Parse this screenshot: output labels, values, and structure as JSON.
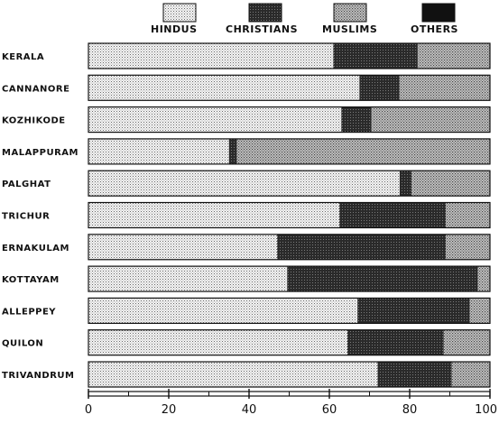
{
  "chart_data": {
    "type": "bar",
    "orientation": "horizontal",
    "stacked": true,
    "categories": [
      "KERALA",
      "CANNANORE",
      "KOZHIKODE",
      "MALAPPURAM",
      "PALGHAT",
      "TRICHUR",
      "ERNAKULAM",
      "KOTTAYAM",
      "ALLEPPEY",
      "QUILON",
      "TRIVANDRUM"
    ],
    "series": [
      {
        "name": "HINDUS",
        "values": [
          61,
          67.5,
          63,
          35,
          77.5,
          62.5,
          47,
          49.5,
          67,
          64.5,
          72
        ],
        "pattern": "light"
      },
      {
        "name": "CHRISTIANS",
        "values": [
          21,
          10,
          7.5,
          2,
          3,
          26.5,
          42,
          47.5,
          28,
          24,
          18.5
        ],
        "pattern": "dark"
      },
      {
        "name": "MUSLIMS",
        "values": [
          18,
          22.5,
          29.5,
          63,
          19.5,
          11,
          11,
          3,
          5,
          11.5,
          9.5
        ],
        "pattern": "medium"
      },
      {
        "name": "OTHERS",
        "values": [
          0,
          0,
          0,
          0,
          0,
          0,
          0,
          0,
          0,
          0,
          0
        ],
        "pattern": "black"
      }
    ],
    "x_ticks": [
      0,
      20,
      40,
      60,
      80,
      100
    ],
    "xlim": [
      0,
      100
    ],
    "legend_position": "top",
    "grid": false,
    "colors": {
      "light": "#e6e6e6",
      "dark": "#3a3a3a",
      "medium": "#a8a8a8",
      "black": "#111111"
    }
  }
}
